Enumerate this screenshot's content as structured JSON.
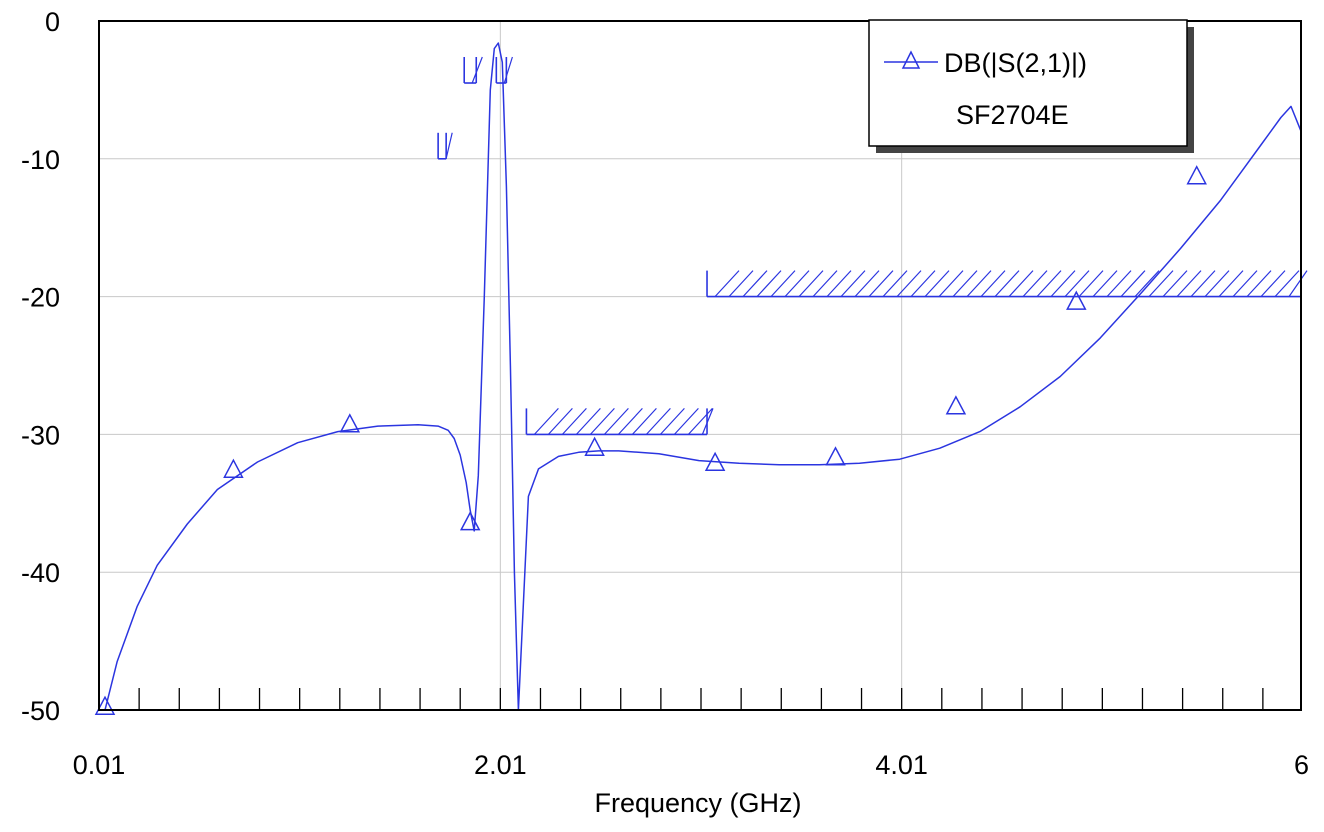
{
  "chart_data": {
    "type": "line",
    "title": "",
    "xlabel": "Frequency (GHz)",
    "ylabel": "",
    "xlim": [
      0.01,
      6
    ],
    "ylim": [
      -50,
      0
    ],
    "x_tick_labels": [
      "0.01",
      "2.01",
      "4.01",
      "6"
    ],
    "x_tick_values": [
      0.01,
      2.01,
      4.01,
      6
    ],
    "y_tick_labels": [
      "0",
      "-10",
      "-20",
      "-30",
      "-40",
      "-50"
    ],
    "y_tick_values": [
      0,
      -10,
      -20,
      -30,
      -40,
      -50
    ],
    "x_minor_step": 0.2,
    "grid": true,
    "legend": {
      "placement": "top-right",
      "entries": [
        "DB(|S(2,1)|)",
        "SF2704E"
      ]
    },
    "series": [
      {
        "name": "DB(|S(2,1)|)",
        "color": "#2b35e0",
        "marker": "triangle",
        "x": [
          0.04,
          0.1,
          0.2,
          0.3,
          0.45,
          0.6,
          0.8,
          1.0,
          1.2,
          1.4,
          1.6,
          1.7,
          1.75,
          1.78,
          1.81,
          1.84,
          1.86,
          1.88,
          1.9,
          1.93,
          1.96,
          1.98,
          2.0,
          2.02,
          2.04,
          2.06,
          2.08,
          2.1,
          2.15,
          2.2,
          2.3,
          2.4,
          2.5,
          2.6,
          2.8,
          3.0,
          3.2,
          3.4,
          3.6,
          3.8,
          4.0,
          4.2,
          4.4,
          4.6,
          4.8,
          5.0,
          5.2,
          5.4,
          5.6,
          5.7,
          5.8,
          5.9,
          5.95,
          6.0
        ],
        "y": [
          -50,
          -46.5,
          -42.5,
          -39.5,
          -36.5,
          -34.0,
          -32.0,
          -30.6,
          -29.8,
          -29.4,
          -29.3,
          -29.4,
          -29.7,
          -30.3,
          -31.5,
          -33.5,
          -35.5,
          -37.0,
          -33.0,
          -20.0,
          -5.0,
          -2.0,
          -1.6,
          -3.0,
          -12.0,
          -25.0,
          -40.0,
          -50,
          -34.5,
          -32.5,
          -31.6,
          -31.3,
          -31.2,
          -31.2,
          -31.4,
          -31.9,
          -32.1,
          -32.2,
          -32.2,
          -32.1,
          -31.8,
          -31.0,
          -29.8,
          -28.0,
          -25.8,
          -23.0,
          -19.8,
          -16.5,
          -13.0,
          -11.0,
          -9.0,
          -7.0,
          -6.2,
          -8.0
        ],
        "marker_x": [
          0.04,
          0.68,
          1.26,
          1.86,
          2.48,
          3.08,
          3.68,
          4.28,
          4.88,
          5.48
        ],
        "marker_y": [
          -49.8,
          -32.6,
          -29.3,
          -36.4,
          -31.0,
          -32.1,
          -31.7,
          -28.0,
          -20.4,
          -11.3
        ]
      }
    ],
    "specification_masks": [
      {
        "x": [
          1.7,
          1.74
        ],
        "y": -10
      },
      {
        "x": [
          1.83,
          1.89
        ],
        "y": -4.5
      },
      {
        "x": [
          1.99,
          2.04
        ],
        "y": -4.5
      },
      {
        "x": [
          2.14,
          3.04
        ],
        "y": -30
      },
      {
        "x": [
          3.04,
          6.0
        ],
        "y": -20
      }
    ]
  }
}
